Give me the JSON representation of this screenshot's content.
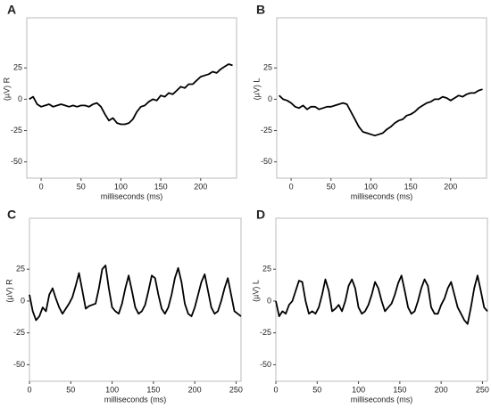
{
  "chart_data": [
    {
      "type": "line",
      "panel_label": "A",
      "x_label": "milliseconds (ms)",
      "y_label": "(µV) R",
      "xlim": [
        -18,
        245
      ],
      "ylim": [
        -63,
        65
      ],
      "xticks": [
        0,
        50,
        100,
        150,
        200
      ],
      "yticks": [
        -50,
        -25,
        0,
        25
      ],
      "color": "#000000",
      "x": [
        -15,
        -10,
        -5,
        0,
        5,
        10,
        15,
        20,
        25,
        30,
        35,
        40,
        45,
        50,
        55,
        60,
        65,
        70,
        75,
        80,
        85,
        90,
        95,
        100,
        105,
        110,
        115,
        120,
        125,
        130,
        135,
        140,
        145,
        150,
        155,
        160,
        165,
        170,
        175,
        180,
        185,
        190,
        195,
        200,
        205,
        210,
        215,
        220,
        225,
        230,
        235,
        240
      ],
      "values": [
        0,
        2,
        -4,
        -6,
        -5,
        -4,
        -6,
        -5,
        -4,
        -5,
        -6,
        -5,
        -6,
        -5,
        -5,
        -6,
        -4,
        -3,
        -6,
        -12,
        -17,
        -15,
        -19,
        -20,
        -20,
        -19,
        -16,
        -10,
        -6,
        -5,
        -2,
        0,
        -1,
        3,
        2,
        5,
        4,
        7,
        10,
        9,
        12,
        12,
        15,
        18,
        19,
        20,
        22,
        21,
        24,
        26,
        28,
        27
      ]
    },
    {
      "type": "line",
      "panel_label": "B",
      "x_label": "milliseconds (ms)",
      "y_label": "(µV) L",
      "xlim": [
        -18,
        245
      ],
      "ylim": [
        -63,
        65
      ],
      "xticks": [
        0,
        50,
        100,
        150,
        200
      ],
      "yticks": [
        -50,
        -25,
        0,
        25
      ],
      "color": "#000000",
      "x": [
        -15,
        -10,
        -5,
        0,
        5,
        10,
        15,
        20,
        25,
        30,
        35,
        40,
        45,
        50,
        55,
        60,
        65,
        70,
        75,
        80,
        85,
        90,
        95,
        100,
        105,
        110,
        115,
        120,
        125,
        130,
        135,
        140,
        145,
        150,
        155,
        160,
        165,
        170,
        175,
        180,
        185,
        190,
        195,
        200,
        205,
        210,
        215,
        220,
        225,
        230,
        235,
        240
      ],
      "values": [
        3,
        0,
        -1,
        -3,
        -6,
        -7,
        -5,
        -8,
        -6,
        -6,
        -8,
        -7,
        -6,
        -6,
        -5,
        -4,
        -3,
        -4,
        -10,
        -16,
        -22,
        -26,
        -27,
        -28,
        -29,
        -28,
        -27,
        -24,
        -22,
        -19,
        -17,
        -16,
        -13,
        -12,
        -10,
        -7,
        -5,
        -3,
        -2,
        0,
        0,
        2,
        1,
        -1,
        1,
        3,
        2,
        4,
        5,
        5,
        7,
        8
      ]
    },
    {
      "type": "line",
      "panel_label": "C",
      "x_label": "milliseconds (ms)",
      "y_label": "(µV) R",
      "xlim": [
        0,
        256
      ],
      "ylim": [
        -63,
        65
      ],
      "xticks": [
        0,
        50,
        100,
        150,
        200,
        250
      ],
      "yticks": [
        -50,
        -25,
        0,
        25
      ],
      "color": "#000000",
      "x": [
        0,
        4,
        8,
        12,
        16,
        20,
        24,
        28,
        32,
        36,
        40,
        44,
        48,
        52,
        56,
        60,
        64,
        68,
        72,
        76,
        80,
        84,
        88,
        92,
        96,
        100,
        104,
        108,
        112,
        116,
        120,
        124,
        128,
        132,
        136,
        140,
        144,
        148,
        152,
        156,
        160,
        164,
        168,
        172,
        176,
        180,
        184,
        188,
        192,
        196,
        200,
        204,
        208,
        212,
        216,
        220,
        224,
        228,
        232,
        236,
        240,
        244,
        248,
        252,
        256
      ],
      "values": [
        5,
        -8,
        -15,
        -12,
        -5,
        -8,
        5,
        10,
        2,
        -5,
        -10,
        -6,
        -2,
        3,
        12,
        22,
        8,
        -6,
        -4,
        -3,
        -2,
        10,
        25,
        28,
        10,
        -5,
        -8,
        -10,
        -2,
        10,
        20,
        8,
        -5,
        -10,
        -8,
        -3,
        8,
        20,
        18,
        5,
        -6,
        -10,
        -5,
        5,
        18,
        26,
        15,
        -2,
        -10,
        -12,
        -5,
        5,
        15,
        21,
        8,
        -5,
        -10,
        -8,
        0,
        10,
        18,
        5,
        -8,
        -10,
        -12
      ]
    },
    {
      "type": "line",
      "panel_label": "D",
      "x_label": "milliseconds (ms)",
      "y_label": "(µV) L",
      "xlim": [
        0,
        256
      ],
      "ylim": [
        -63,
        65
      ],
      "xticks": [
        0,
        50,
        100,
        150,
        200,
        250
      ],
      "yticks": [
        -50,
        -25,
        0,
        25
      ],
      "color": "#000000",
      "x": [
        0,
        4,
        8,
        12,
        16,
        20,
        24,
        28,
        32,
        36,
        40,
        44,
        48,
        52,
        56,
        60,
        64,
        68,
        72,
        76,
        80,
        84,
        88,
        92,
        96,
        100,
        104,
        108,
        112,
        116,
        120,
        124,
        128,
        132,
        136,
        140,
        144,
        148,
        152,
        156,
        160,
        164,
        168,
        172,
        176,
        180,
        184,
        188,
        192,
        196,
        200,
        204,
        208,
        212,
        216,
        220,
        224,
        228,
        232,
        236,
        240,
        244,
        248,
        252,
        256
      ],
      "values": [
        0,
        -12,
        -8,
        -10,
        -3,
        0,
        8,
        16,
        15,
        0,
        -10,
        -8,
        -10,
        -5,
        5,
        17,
        8,
        -8,
        -6,
        -3,
        -8,
        0,
        12,
        17,
        10,
        -5,
        -10,
        -8,
        -3,
        5,
        15,
        10,
        0,
        -8,
        -5,
        -2,
        5,
        14,
        20,
        8,
        -5,
        -10,
        -8,
        0,
        10,
        17,
        12,
        -5,
        -10,
        -10,
        -3,
        2,
        10,
        15,
        5,
        -5,
        -10,
        -15,
        -18,
        -5,
        10,
        20,
        8,
        -5,
        -8
      ]
    }
  ]
}
